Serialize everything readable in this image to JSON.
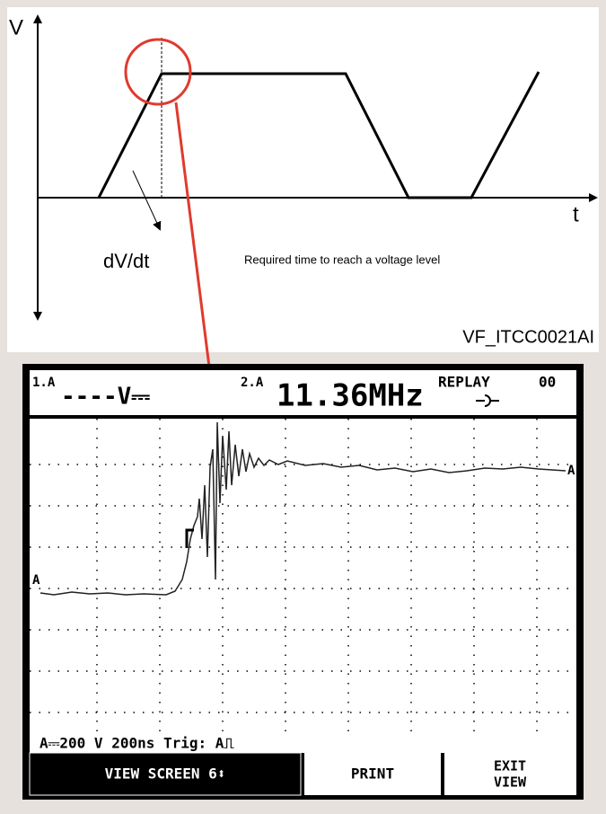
{
  "diagram": {
    "y_axis_label": "V",
    "x_axis_label": "t",
    "slope_label": "dV/dt",
    "caption": "Required time to reach a voltage level",
    "figure_id": "VF_ITCC0021AI"
  },
  "scope": {
    "ch1_label": "1.A",
    "ch1_reading": "----V⎓",
    "ch2_label": "2.A",
    "ch2_reading": "11.36MHz",
    "mode": "REPLAY",
    "mode_number": "00",
    "trace_marker_left": "A",
    "trace_marker_right": "A",
    "status_line": "A⎓200 V  200ns  Trig: A⎍",
    "buttons": {
      "view_screen": "VIEW SCREEN 6⬍",
      "print": "PRINT",
      "exit_line1": "EXIT",
      "exit_line2": "VIEW"
    }
  }
}
